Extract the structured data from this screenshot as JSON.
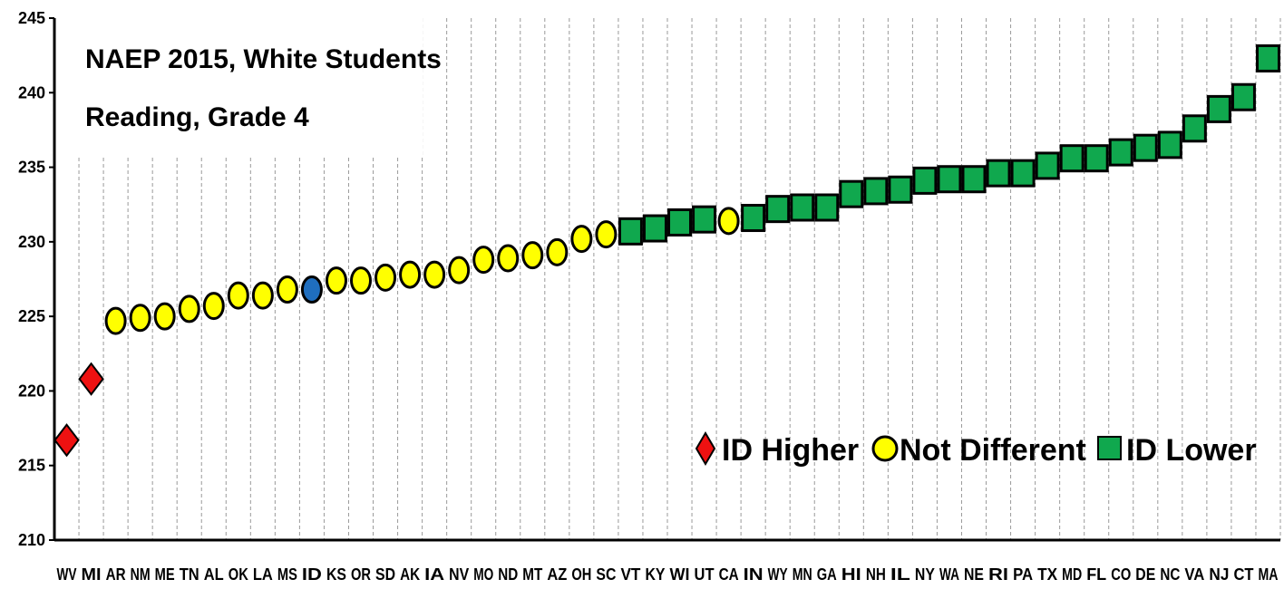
{
  "chart_data": {
    "type": "scatter",
    "title_lines": [
      "NAEP 2015, White  Students",
      "Reading, Grade 4"
    ],
    "ylim": [
      210,
      245
    ],
    "yticks": [
      210,
      215,
      220,
      225,
      230,
      235,
      240,
      245
    ],
    "grid": "vertical dashed",
    "legend_position": "bottom-right",
    "colors": {
      "id_higher": "#ee1111",
      "not_different": "#ffff00",
      "id_lower": "#10a84e",
      "reference": "#1f6ebf"
    },
    "legend": [
      {
        "label": "ID Higher",
        "marker": "diamond",
        "color": "#ee1111"
      },
      {
        "label": "Not Different",
        "marker": "circle",
        "color": "#ffff00"
      },
      {
        "label": "ID Lower",
        "marker": "square",
        "color": "#10a84e"
      }
    ],
    "points": [
      {
        "state": "WV",
        "value": 216.7,
        "group": "id_higher"
      },
      {
        "state": "MI",
        "value": 220.8,
        "group": "id_higher"
      },
      {
        "state": "AR",
        "value": 224.7,
        "group": "not_different"
      },
      {
        "state": "NM",
        "value": 224.9,
        "group": "not_different"
      },
      {
        "state": "ME",
        "value": 225.0,
        "group": "not_different"
      },
      {
        "state": "TN",
        "value": 225.5,
        "group": "not_different"
      },
      {
        "state": "AL",
        "value": 225.7,
        "group": "not_different"
      },
      {
        "state": "OK",
        "value": 226.4,
        "group": "not_different"
      },
      {
        "state": "LA",
        "value": 226.4,
        "group": "not_different"
      },
      {
        "state": "MS",
        "value": 226.8,
        "group": "not_different"
      },
      {
        "state": "ID",
        "value": 226.8,
        "group": "reference"
      },
      {
        "state": "KS",
        "value": 227.4,
        "group": "not_different"
      },
      {
        "state": "OR",
        "value": 227.4,
        "group": "not_different"
      },
      {
        "state": "SD",
        "value": 227.6,
        "group": "not_different"
      },
      {
        "state": "AK",
        "value": 227.8,
        "group": "not_different"
      },
      {
        "state": "IA",
        "value": 227.8,
        "group": "not_different"
      },
      {
        "state": "NV",
        "value": 228.1,
        "group": "not_different"
      },
      {
        "state": "MO",
        "value": 228.8,
        "group": "not_different"
      },
      {
        "state": "ND",
        "value": 228.9,
        "group": "not_different"
      },
      {
        "state": "MT",
        "value": 229.1,
        "group": "not_different"
      },
      {
        "state": "AZ",
        "value": 229.3,
        "group": "not_different"
      },
      {
        "state": "OH",
        "value": 230.2,
        "group": "not_different"
      },
      {
        "state": "SC",
        "value": 230.5,
        "group": "not_different"
      },
      {
        "state": "VT",
        "value": 230.7,
        "group": "id_lower"
      },
      {
        "state": "KY",
        "value": 230.9,
        "group": "id_lower"
      },
      {
        "state": "WI",
        "value": 231.3,
        "group": "id_lower"
      },
      {
        "state": "UT",
        "value": 231.5,
        "group": "id_lower"
      },
      {
        "state": "CA",
        "value": 231.4,
        "group": "not_different"
      },
      {
        "state": "IN",
        "value": 231.6,
        "group": "id_lower"
      },
      {
        "state": "WY",
        "value": 232.2,
        "group": "id_lower"
      },
      {
        "state": "MN",
        "value": 232.3,
        "group": "id_lower"
      },
      {
        "state": "GA",
        "value": 232.3,
        "group": "id_lower"
      },
      {
        "state": "HI",
        "value": 233.2,
        "group": "id_lower"
      },
      {
        "state": "NH",
        "value": 233.4,
        "group": "id_lower"
      },
      {
        "state": "IL",
        "value": 233.5,
        "group": "id_lower"
      },
      {
        "state": "NY",
        "value": 234.1,
        "group": "id_lower"
      },
      {
        "state": "WA",
        "value": 234.2,
        "group": "id_lower"
      },
      {
        "state": "NE",
        "value": 234.2,
        "group": "id_lower"
      },
      {
        "state": "RI",
        "value": 234.6,
        "group": "id_lower"
      },
      {
        "state": "PA",
        "value": 234.6,
        "group": "id_lower"
      },
      {
        "state": "TX",
        "value": 235.1,
        "group": "id_lower"
      },
      {
        "state": "MD",
        "value": 235.6,
        "group": "id_lower"
      },
      {
        "state": "FL",
        "value": 235.6,
        "group": "id_lower"
      },
      {
        "state": "CO",
        "value": 236.0,
        "group": "id_lower"
      },
      {
        "state": "DE",
        "value": 236.3,
        "group": "id_lower"
      },
      {
        "state": "NC",
        "value": 236.5,
        "group": "id_lower"
      },
      {
        "state": "VA",
        "value": 237.6,
        "group": "id_lower"
      },
      {
        "state": "NJ",
        "value": 238.9,
        "group": "id_lower"
      },
      {
        "state": "CT",
        "value": 239.7,
        "group": "id_lower"
      },
      {
        "state": "MA",
        "value": 242.3,
        "group": "id_lower"
      }
    ]
  }
}
